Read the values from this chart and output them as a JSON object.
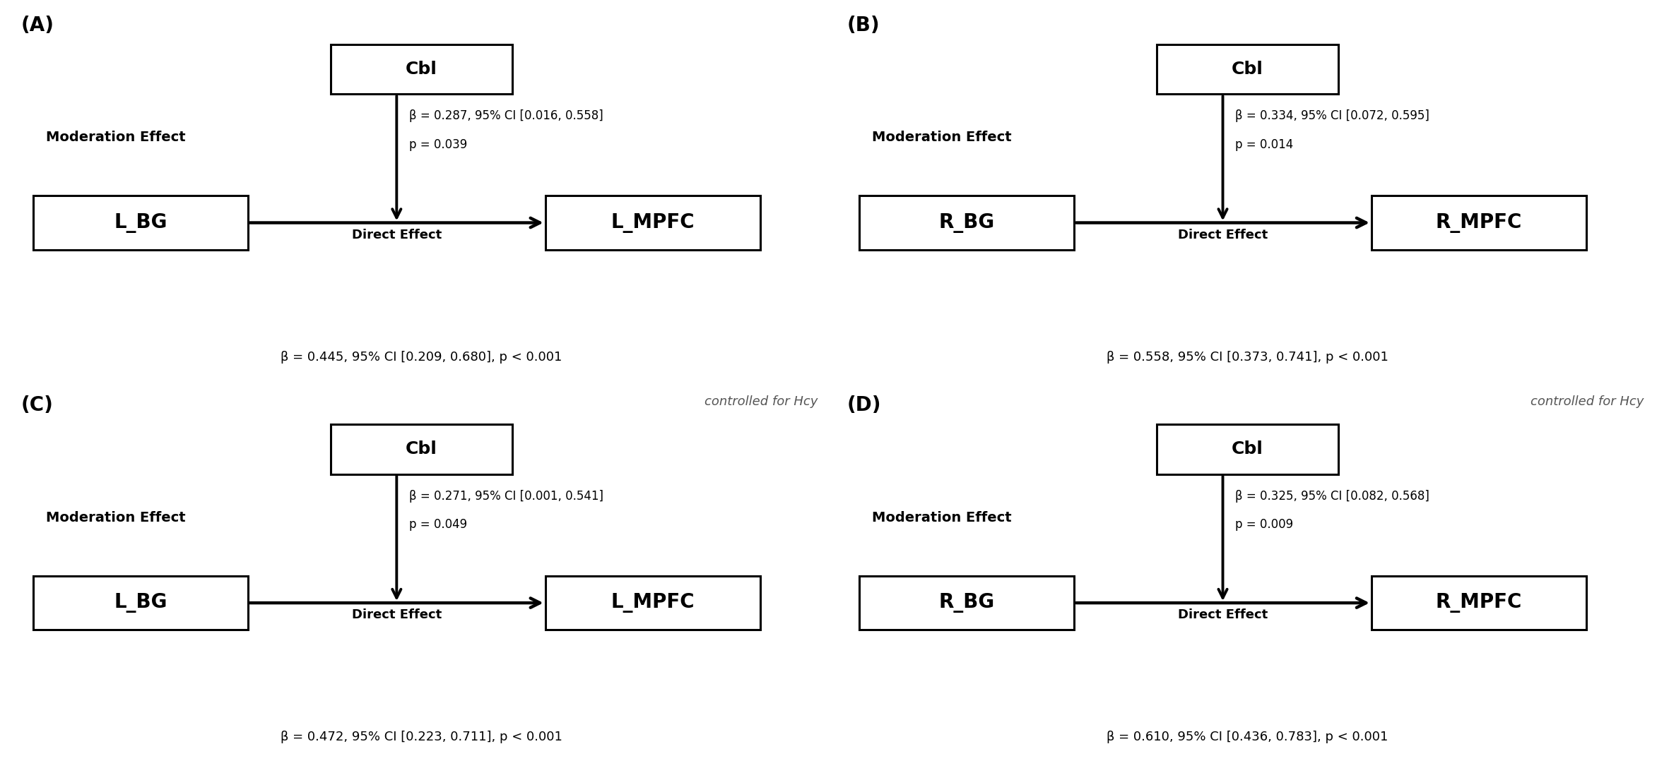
{
  "panels": [
    {
      "label": "(A)",
      "bg_color": "#ffffff",
      "controlled": false,
      "left_node": "L_BG",
      "right_node": "L_MPFC",
      "top_node": "Cbl",
      "mod_label": "Moderation Effect",
      "dir_label": "Direct Effect",
      "mod_stats": "β = 0.287, 95% CI [0.016, 0.558]",
      "mod_p": "p = 0.039",
      "dir_stats": "β = 0.445, 95% CI [0.209, 0.680], p < 0.001"
    },
    {
      "label": "(B)",
      "bg_color": "#ffffff",
      "controlled": false,
      "left_node": "R_BG",
      "right_node": "R_MPFC",
      "top_node": "Cbl",
      "mod_label": "Moderation Effect",
      "dir_label": "Direct Effect",
      "mod_stats": "β = 0.334, 95% CI [0.072, 0.595]",
      "mod_p": "p = 0.014",
      "dir_stats": "β = 0.558, 95% CI [0.373, 0.741], p < 0.001"
    },
    {
      "label": "(C)",
      "bg_color": "#d4d4d4",
      "controlled": true,
      "left_node": "L_BG",
      "right_node": "L_MPFC",
      "top_node": "Cbl",
      "mod_label": "Moderation Effect",
      "dir_label": "Direct Effect",
      "mod_stats": "β = 0.271, 95% CI [0.001, 0.541]",
      "mod_p": "p = 0.049",
      "dir_stats": "β = 0.472, 95% CI [0.223, 0.711], p < 0.001"
    },
    {
      "label": "(D)",
      "bg_color": "#d4d4d4",
      "controlled": true,
      "left_node": "R_BG",
      "right_node": "R_MPFC",
      "top_node": "Cbl",
      "mod_label": "Moderation Effect",
      "dir_label": "Direct Effect",
      "mod_stats": "β = 0.325, 95% CI [0.082, 0.568]",
      "mod_p": "p = 0.009",
      "dir_stats": "β = 0.610, 95% CI [0.436, 0.783], p < 0.001"
    }
  ],
  "controlled_text": "controlled for Hcy",
  "fig_width": 23.62,
  "fig_height": 10.88,
  "dpi": 100
}
